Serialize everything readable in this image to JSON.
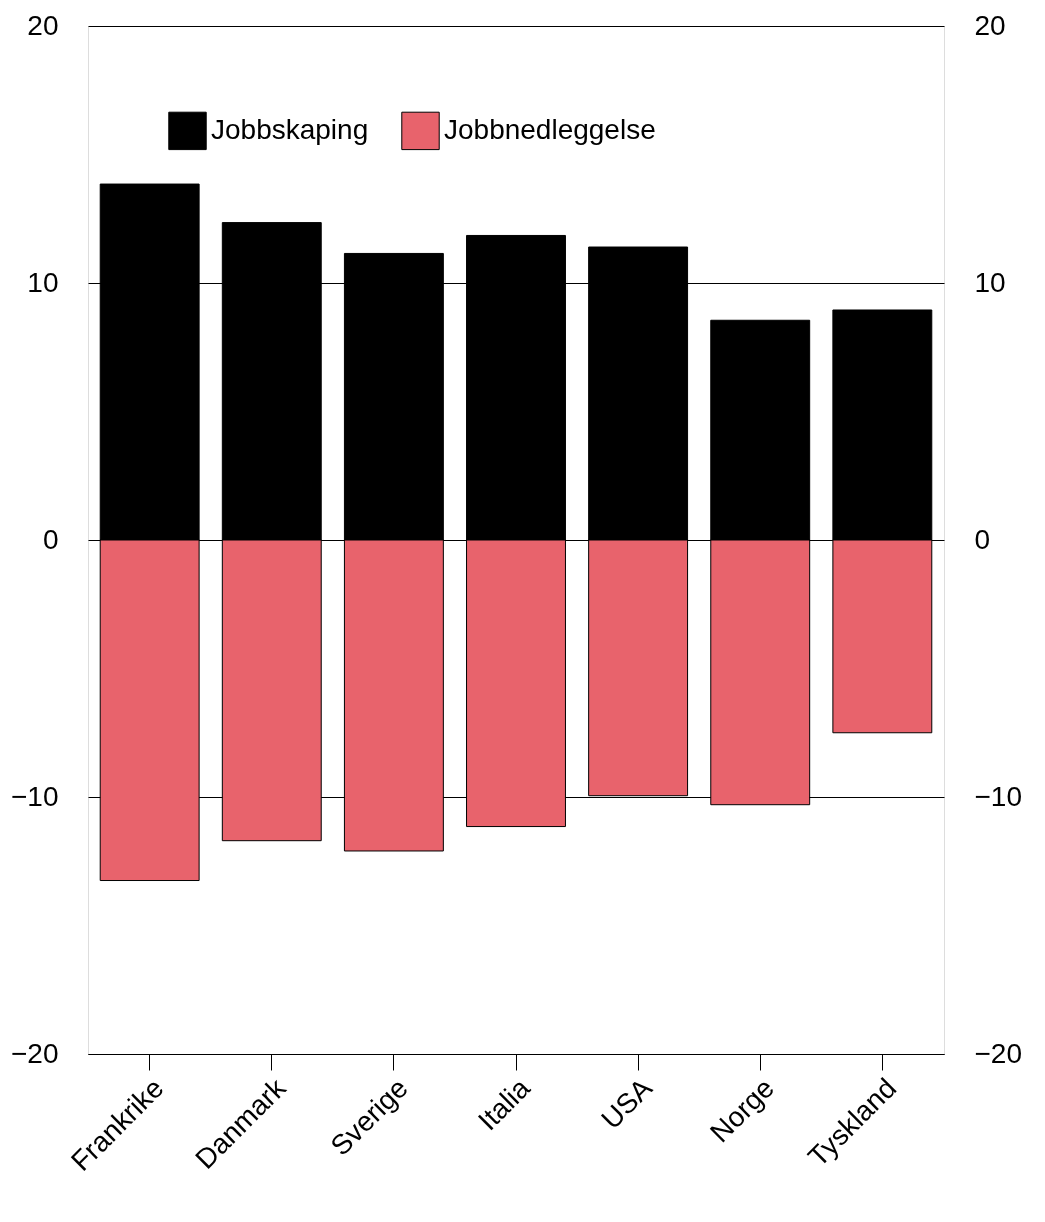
{
  "chart_data": {
    "type": "bar",
    "stacked": true,
    "categories": [
      "Frankrike",
      "Danmark",
      "Sverige",
      "Italia",
      "USA",
      "Norge",
      "Tyskland"
    ],
    "series": [
      {
        "name": "Jobbskaping",
        "color": "#000000",
        "values": [
          13.85,
          12.35,
          11.15,
          11.85,
          11.4,
          8.55,
          8.95
        ]
      },
      {
        "name": "Jobbnedleggelse",
        "color": "#e8636c",
        "values": [
          -13.25,
          -11.7,
          -12.1,
          -11.15,
          -9.95,
          -10.3,
          -7.5
        ]
      }
    ],
    "ylim": [
      -20,
      20
    ],
    "yticks": [
      -20,
      -10,
      0,
      10,
      20
    ],
    "y2lim": [
      -20,
      20
    ],
    "y2ticks": [
      -20,
      -10,
      0,
      10,
      20
    ],
    "grid": "y",
    "legend": "top"
  }
}
